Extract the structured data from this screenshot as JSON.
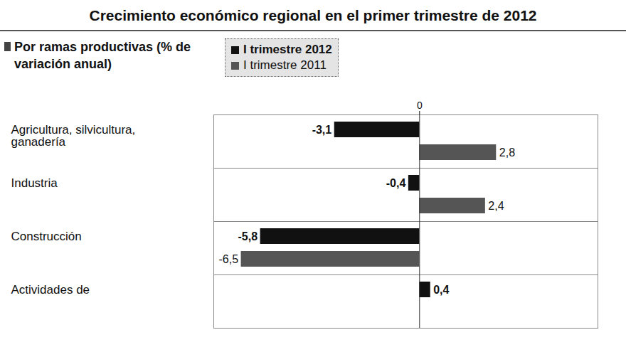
{
  "chart_data": {
    "type": "bar",
    "orientation": "horizontal",
    "title": "Crecimiento económico regional en el primer trimestre de 2012",
    "subtitle": "Por ramas productivas (% de variación anual)",
    "categories": [
      "Agricultura, silvicultura, ganadería",
      "Industria",
      "Construcción",
      "Actividades de"
    ],
    "series": [
      {
        "name": "I trimestre 2012",
        "color": "#111111",
        "values": [
          -3.1,
          -0.4,
          -5.8,
          0.4
        ],
        "value_labels": [
          "-3,1",
          "-0,4",
          "-5,8",
          "0,4"
        ]
      },
      {
        "name": "I trimestre 2011",
        "color": "#555555",
        "values": [
          2.8,
          2.4,
          -6.5,
          null
        ],
        "value_labels": [
          "2,8",
          "2,4",
          "-6,5",
          null
        ]
      }
    ],
    "xlim": [
      -7.5,
      6.5
    ],
    "xticks": [
      0
    ],
    "tick_labels": "x",
    "data_labels": true,
    "legend": "top"
  }
}
